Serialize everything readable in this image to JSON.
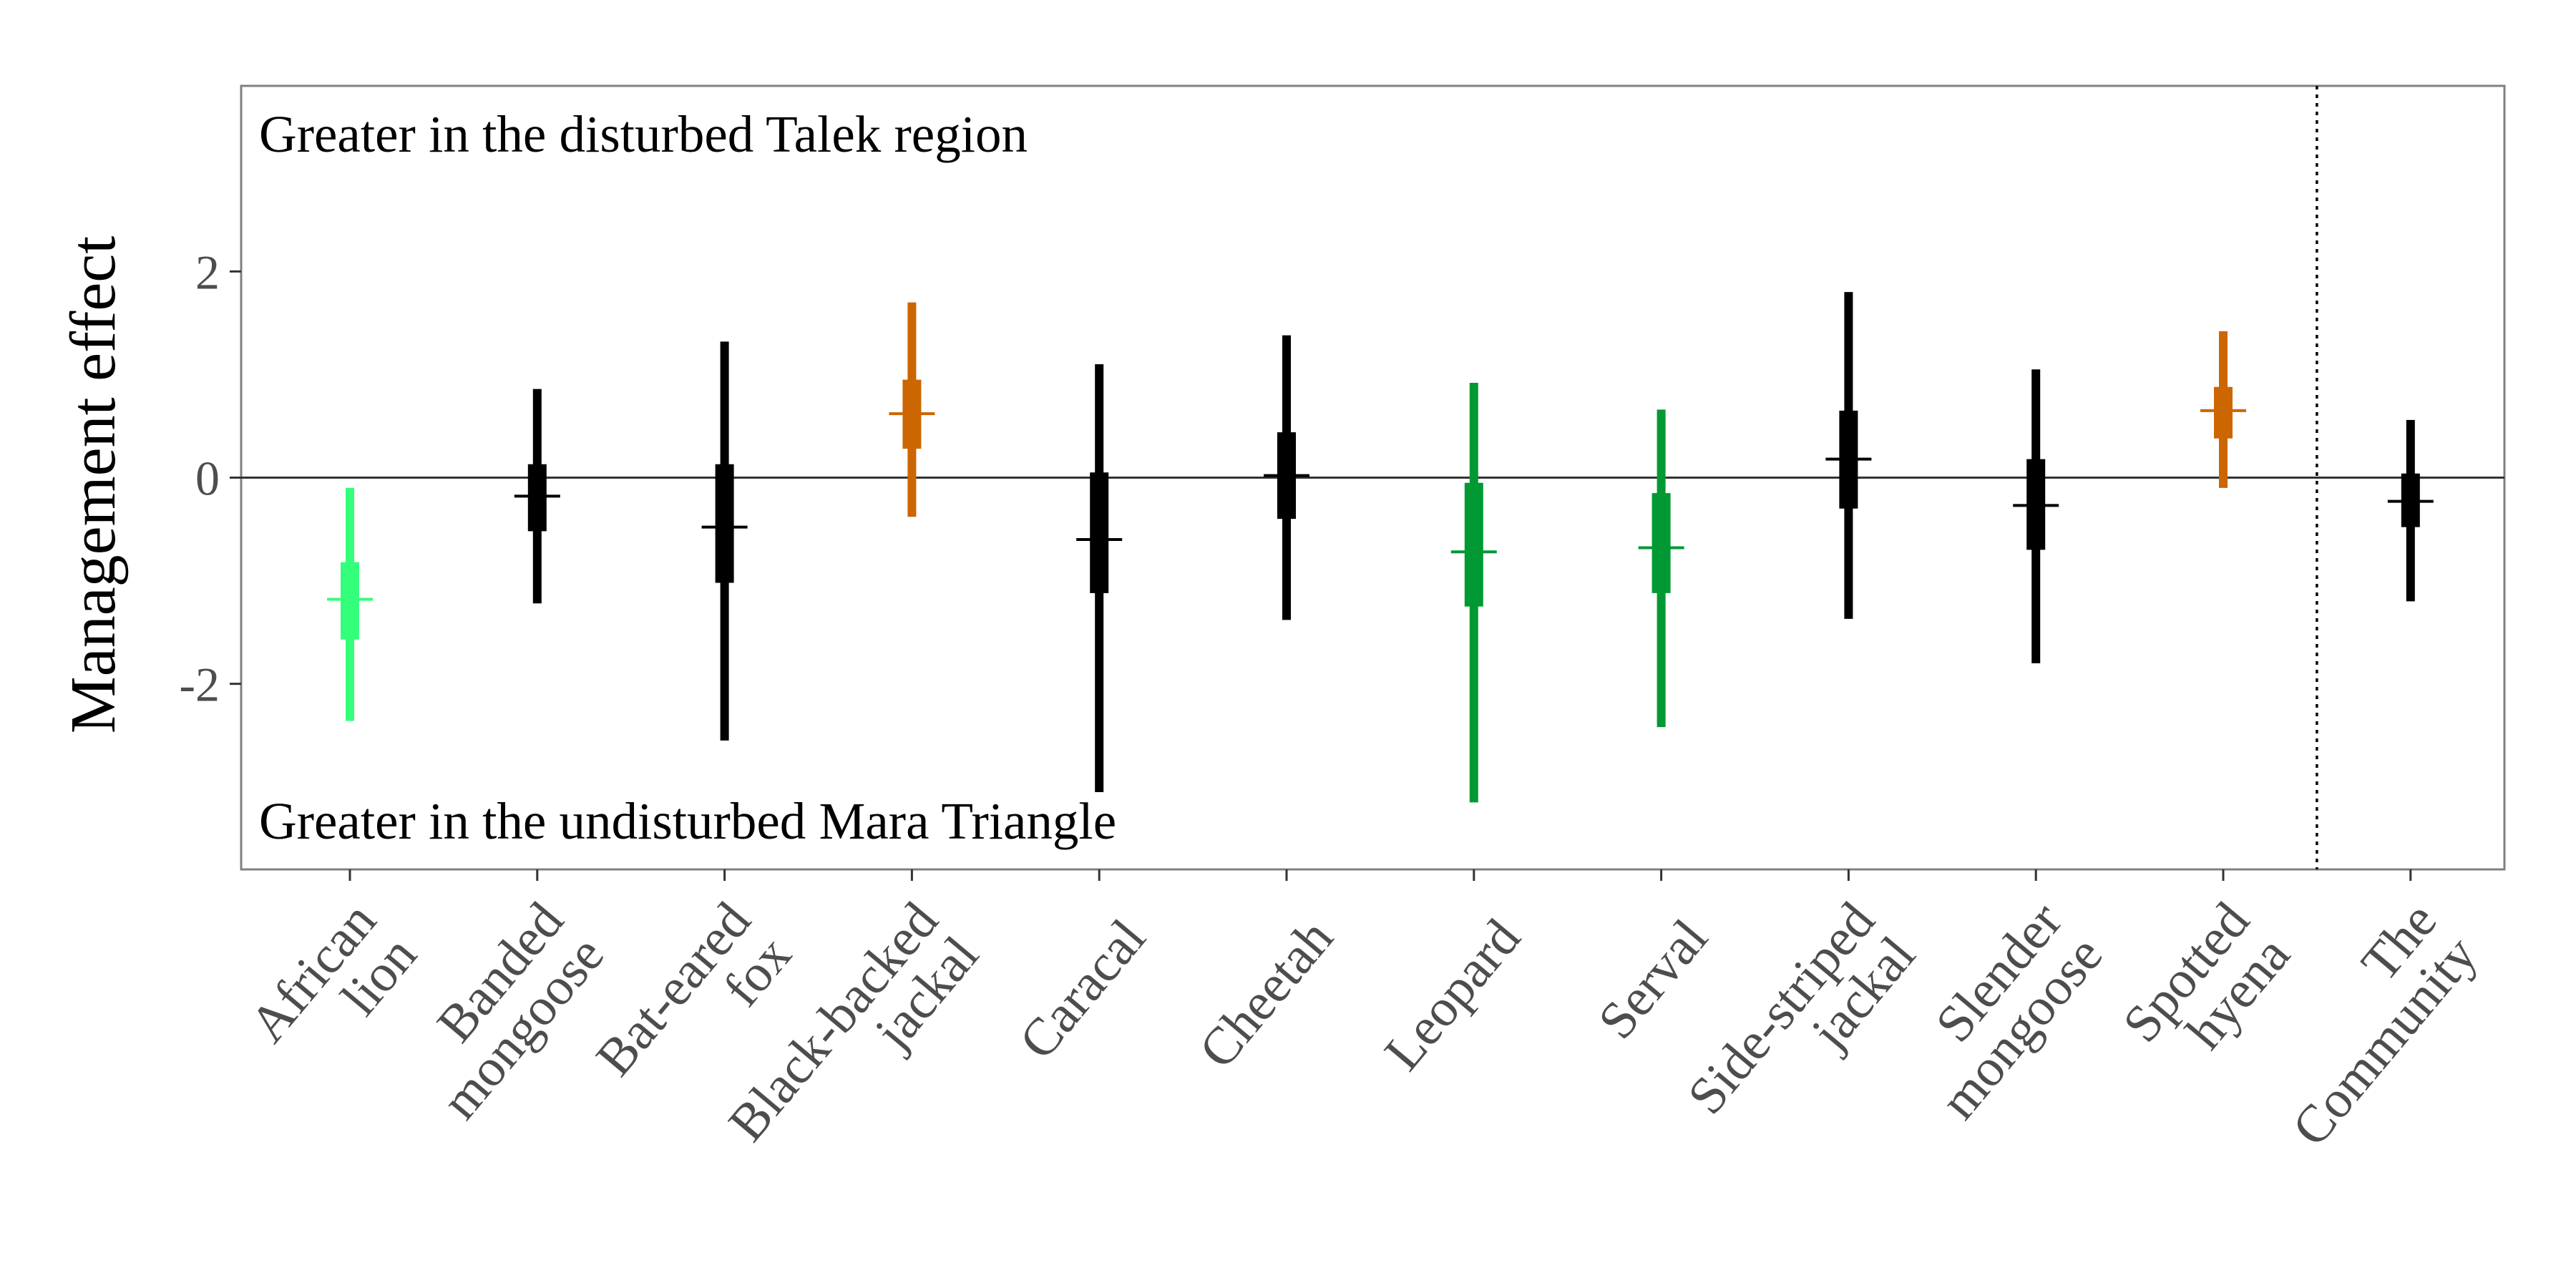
{
  "chart_data": {
    "type": "interval",
    "title": "",
    "xlabel": "",
    "ylabel": "Management effect",
    "ylim": [
      -3.8,
      3.8
    ],
    "yticks": [
      -2,
      0,
      2
    ],
    "ytick_labels": [
      "-2",
      "0",
      "2"
    ],
    "grid": false,
    "legend": "none",
    "reference_line_y": 0,
    "annotations": {
      "top": "Greater in the disturbed Talek region",
      "bottom": "Greater in the undisturbed Mara Triangle"
    },
    "categories": [
      [
        "African",
        "lion"
      ],
      [
        "Banded",
        "mongoose"
      ],
      [
        "Bat-eared",
        "fox"
      ],
      [
        "Black-backed",
        "jackal"
      ],
      [
        "Caracal"
      ],
      [
        "Cheetah"
      ],
      [
        "Leopard"
      ],
      [
        "Serval"
      ],
      [
        "Side-striped",
        "jackal"
      ],
      [
        "Slender",
        "mongoose"
      ],
      [
        "Spotted",
        "hyena"
      ],
      [
        "The",
        "Community"
      ]
    ],
    "estimates": [
      {
        "median": -1.18,
        "inner": [
          -1.57,
          -0.82
        ],
        "outer": [
          -2.36,
          -0.1
        ],
        "color": "#33ff7a"
      },
      {
        "median": -0.18,
        "inner": [
          -0.52,
          0.13
        ],
        "outer": [
          -1.22,
          0.86
        ],
        "color": "#000000"
      },
      {
        "median": -0.48,
        "inner": [
          -1.02,
          0.13
        ],
        "outer": [
          -2.55,
          1.32
        ],
        "color": "#000000"
      },
      {
        "median": 0.62,
        "inner": [
          0.28,
          0.95
        ],
        "outer": [
          -0.38,
          1.7
        ],
        "color": "#cc6600"
      },
      {
        "median": -0.6,
        "inner": [
          -1.12,
          0.05
        ],
        "outer": [
          -3.05,
          1.1
        ],
        "color": "#000000"
      },
      {
        "median": 0.02,
        "inner": [
          -0.4,
          0.44
        ],
        "outer": [
          -1.38,
          1.38
        ],
        "color": "#000000"
      },
      {
        "median": -0.72,
        "inner": [
          -1.25,
          -0.05
        ],
        "outer": [
          -3.15,
          0.92
        ],
        "color": "#009933"
      },
      {
        "median": -0.68,
        "inner": [
          -1.12,
          -0.15
        ],
        "outer": [
          -2.42,
          0.66
        ],
        "color": "#009933"
      },
      {
        "median": 0.18,
        "inner": [
          -0.3,
          0.65
        ],
        "outer": [
          -1.37,
          1.8
        ],
        "color": "#000000"
      },
      {
        "median": -0.27,
        "inner": [
          -0.7,
          0.18
        ],
        "outer": [
          -1.8,
          1.05
        ],
        "color": "#000000"
      },
      {
        "median": 0.65,
        "inner": [
          0.38,
          0.88
        ],
        "outer": [
          -0.1,
          1.42
        ],
        "color": "#cc6600"
      },
      {
        "median": -0.23,
        "inner": [
          -0.48,
          0.04
        ],
        "outer": [
          -1.2,
          0.56
        ],
        "color": "#000000"
      }
    ],
    "separator_after_index": 10
  }
}
